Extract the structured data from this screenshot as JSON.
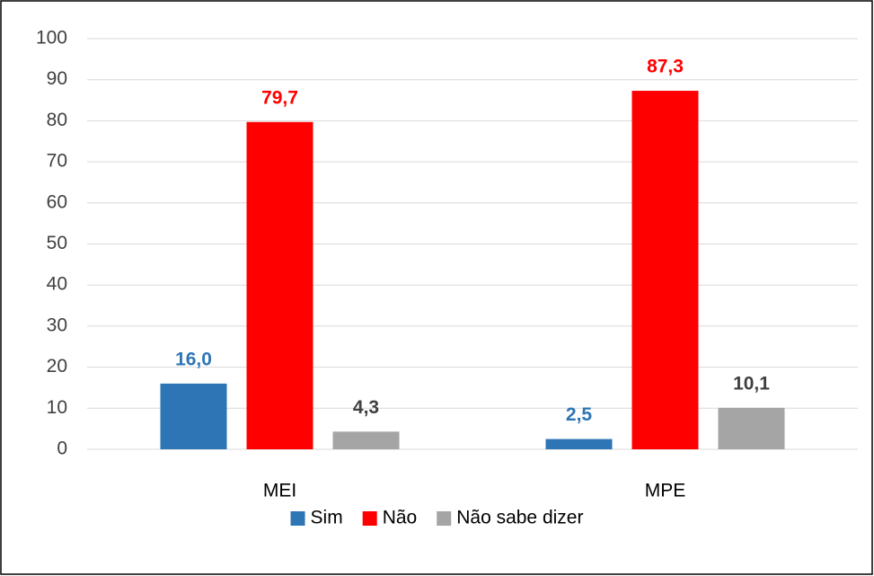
{
  "chart_data": {
    "type": "bar",
    "categories": [
      "MEI",
      "MPE"
    ],
    "series": [
      {
        "name": "Sim",
        "color": "#2e75b6",
        "label_color": "#2e75b6",
        "values": [
          16.0,
          2.5
        ],
        "value_labels": [
          "16,0",
          "2,5"
        ]
      },
      {
        "name": "Não",
        "color": "#ff0000",
        "label_color": "#ff0000",
        "values": [
          79.7,
          87.3
        ],
        "value_labels": [
          "79,7",
          "87,3"
        ]
      },
      {
        "name": "Não sabe dizer",
        "color": "#a5a5a5",
        "label_color": "#404040",
        "values": [
          4.3,
          10.1
        ],
        "value_labels": [
          "4,3",
          "10,1"
        ]
      }
    ],
    "ylim": [
      0,
      100
    ],
    "yticks": [
      0,
      10,
      20,
      30,
      40,
      50,
      60,
      70,
      80,
      90,
      100
    ],
    "grid": true,
    "legend": "bottom"
  }
}
